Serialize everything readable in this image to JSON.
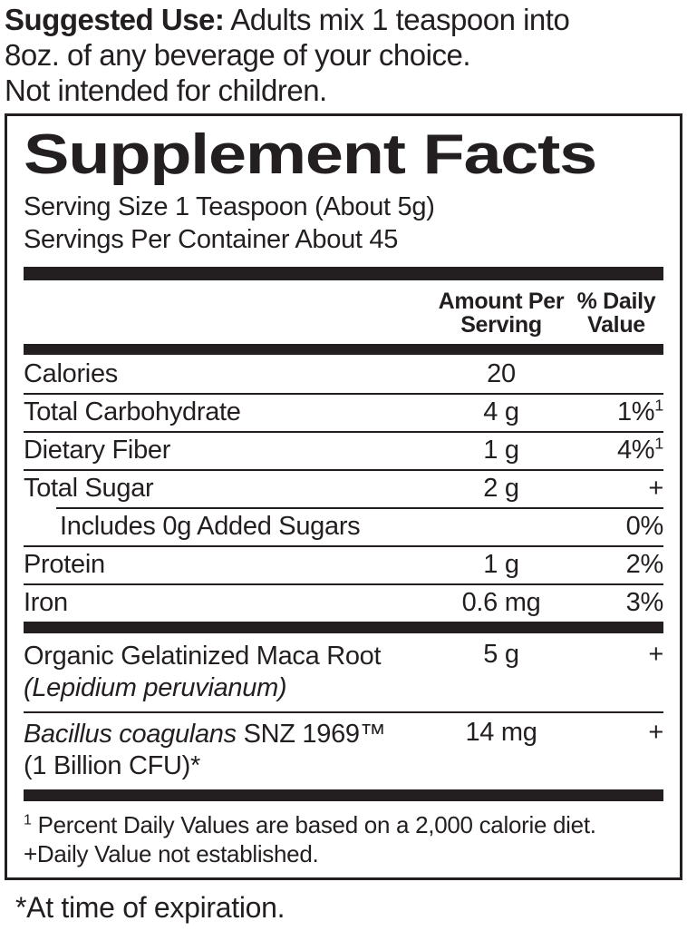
{
  "colors": {
    "ink": "#231f20",
    "paper": "#ffffff"
  },
  "suggested_use": {
    "label": "Suggested Use:",
    "line1_rest": " Adults mix 1 teaspoon into",
    "line2": "8oz. of any beverage of your choice.",
    "line3": "Not intended for children."
  },
  "panel": {
    "title": "Supplement Facts",
    "serving_size": "Serving Size 1 Teaspoon (About 5g)",
    "servings_per_container": "Servings Per Container About 45",
    "columns": {
      "amount": "Amount Per Serving",
      "daily_value": "% Daily Value"
    },
    "rows": [
      {
        "name": "Calories",
        "amount": "20",
        "dv": ""
      },
      {
        "name": "Total Carbohydrate",
        "amount": "4 g",
        "dv": "1%",
        "dv_sup": "1"
      },
      {
        "name": "Dietary Fiber",
        "amount": "1 g",
        "dv": "4%",
        "dv_sup": "1"
      },
      {
        "name": "Total Sugar",
        "amount": "2 g",
        "dv": "+"
      },
      {
        "name": "Includes 0g Added Sugars",
        "amount": "",
        "dv": "0%"
      },
      {
        "name": "Protein",
        "amount": "1 g",
        "dv": "2%"
      },
      {
        "name": "Iron",
        "amount": "0.6 mg",
        "dv": "3%"
      }
    ],
    "ingredients": [
      {
        "name": "Organic Gelatinized Maca Root",
        "sub_italic": "(Lepidium peruvianum)",
        "amount": "5 g",
        "dv": "+"
      },
      {
        "name_italic": "Bacillus coagulans",
        "name_rest": " SNZ 1969™",
        "sub": "(1 Billion CFU)*",
        "amount": "14 mg",
        "dv": "+"
      }
    ],
    "footnotes": {
      "dv_sup": "1",
      "dv_note": " Percent Daily Values are based on a 2,000 calorie diet.",
      "plus_note": "+Daily Value not established."
    }
  },
  "bottom_note": "*At time of expiration."
}
